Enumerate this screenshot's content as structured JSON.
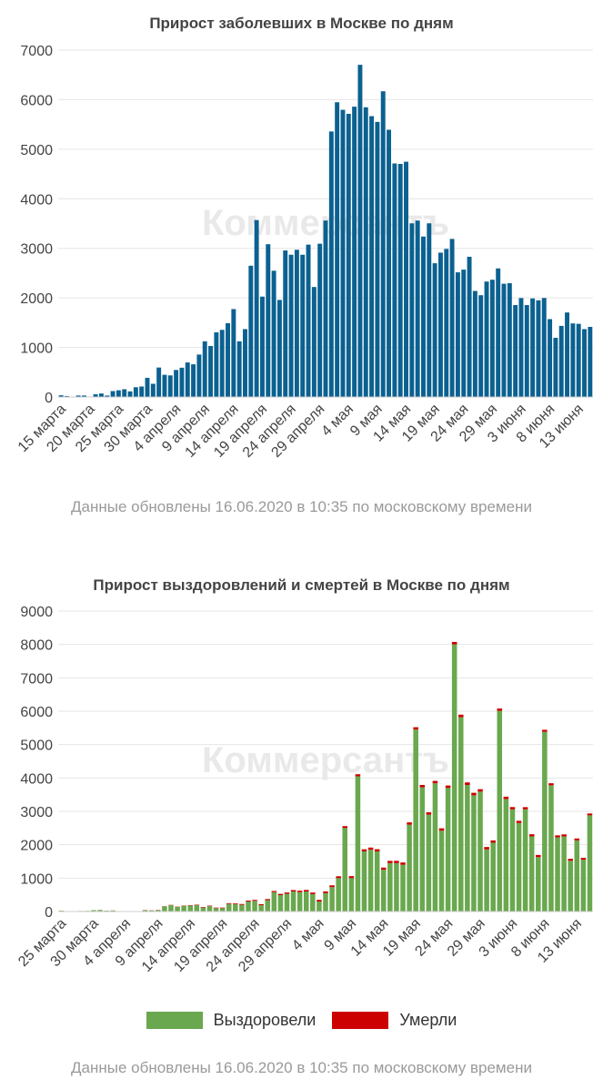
{
  "footnote": "Данные обновлены 16.06.2020 в 10:35 по московскому времени",
  "watermark": "Коммерсантъ",
  "colors": {
    "cases": "#0b6190",
    "recovered": "#6aa84f",
    "deaths": "#cc0000",
    "grid": "#e6e6e6"
  },
  "chart_data": [
    {
      "type": "bar",
      "title": "Прирост заболевших в Москве по дням",
      "xlabel": "",
      "ylabel": "",
      "ylim": [
        0,
        7000
      ],
      "yticks": [
        0,
        1000,
        2000,
        3000,
        4000,
        5000,
        6000,
        7000
      ],
      "grid": true,
      "x_start": "2020-03-15",
      "x_end": "2020-06-16",
      "tick_labels": [
        "15 марта",
        "20 марта",
        "25 марта",
        "30 марта",
        "4 апреля",
        "9 апреля",
        "14 апреля",
        "19 апреля",
        "24 апреля",
        "29 апреля",
        "4 мая",
        "9 мая",
        "14 мая",
        "19 мая",
        "24 мая",
        "29 мая",
        "3 июня",
        "8 июня",
        "13 июня"
      ],
      "series": [
        {
          "key": "cases",
          "values": [
            35,
            20,
            0,
            30,
            30,
            5,
            57,
            71,
            30,
            120,
            136,
            157,
            114,
            197,
            212,
            387,
            267,
            595,
            448,
            436,
            546,
            591,
            697,
            660,
            857,
            1124,
            1030,
            1306,
            1355,
            1489,
            1774,
            1124,
            1370,
            2649,
            3570,
            2026,
            3083,
            2548,
            1959,
            2957,
            2871,
            2971,
            2871,
            3075,
            2220,
            3093,
            3561,
            5358,
            5948,
            5795,
            5714,
            5858,
            6703,
            5846,
            5667,
            5551,
            6169,
            5392,
            4712,
            4703,
            4748,
            3505,
            3561,
            3238,
            3505,
            2699,
            2913,
            2988,
            3190,
            2516,
            2570,
            2830,
            2140,
            2054,
            2330,
            2367,
            2595,
            2286,
            2297,
            1855,
            1997,
            1855,
            1989,
            1952,
            1998,
            1572,
            1195,
            1435,
            1706,
            1485,
            1477,
            1370,
            1415
          ]
        }
      ]
    },
    {
      "type": "bar",
      "stacked": true,
      "title": "Прирост выздоровлений и смертей в Москве по дням",
      "xlabel": "",
      "ylabel": "",
      "ylim": [
        0,
        9000
      ],
      "yticks": [
        0,
        1000,
        2000,
        3000,
        4000,
        5000,
        6000,
        7000,
        8000,
        9000
      ],
      "grid": true,
      "legend_position": "bottom",
      "x_start": "2020-03-25",
      "x_end": "2020-06-16",
      "tick_labels": [
        "25 марта",
        "30 марта",
        "4 апреля",
        "9 апреля",
        "14 апреля",
        "19 апреля",
        "24 апреля",
        "29 апреля",
        "4 мая",
        "9 мая",
        "14 мая",
        "19 мая",
        "24 мая",
        "29 мая",
        "3 июня",
        "8 июня",
        "13 июня"
      ],
      "series": [
        {
          "key": "recovered",
          "name": "Выздоровели",
          "values": [
            25,
            5,
            10,
            15,
            20,
            40,
            45,
            25,
            30,
            10,
            5,
            10,
            10,
            40,
            30,
            40,
            150,
            190,
            140,
            170,
            180,
            190,
            120,
            160,
            100,
            100,
            230,
            220,
            200,
            300,
            320,
            190,
            340,
            580,
            490,
            530,
            600,
            580,
            600,
            520,
            300,
            550,
            730,
            1000,
            2500,
            1000,
            4050,
            1800,
            1850,
            1800,
            1250,
            1450,
            1450,
            1400,
            2600,
            5450,
            3720,
            2900,
            3840,
            2420,
            3700,
            8000,
            5820,
            3790,
            3480,
            3590,
            1860,
            2060,
            6010,
            3370,
            3060,
            2650,
            3060,
            2250,
            1630,
            5380,
            3780,
            2220,
            2250,
            1520,
            2130,
            1550,
            2880
          ]
        },
        {
          "key": "deaths",
          "name": "Умерли",
          "values": [
            0,
            0,
            0,
            1,
            0,
            1,
            2,
            1,
            2,
            1,
            2,
            3,
            3,
            4,
            5,
            6,
            7,
            8,
            8,
            10,
            12,
            14,
            15,
            16,
            17,
            18,
            20,
            22,
            25,
            27,
            29,
            31,
            33,
            35,
            38,
            40,
            42,
            44,
            46,
            48,
            50,
            52,
            54,
            56,
            58,
            60,
            62,
            64,
            65,
            66,
            66,
            67,
            68,
            69,
            70,
            70,
            71,
            72,
            72,
            73,
            74,
            75,
            76,
            77,
            76,
            74,
            72,
            70,
            70,
            69,
            68,
            67,
            66,
            65,
            64,
            63,
            62,
            61,
            60,
            59,
            58,
            57,
            56
          ]
        }
      ]
    }
  ]
}
